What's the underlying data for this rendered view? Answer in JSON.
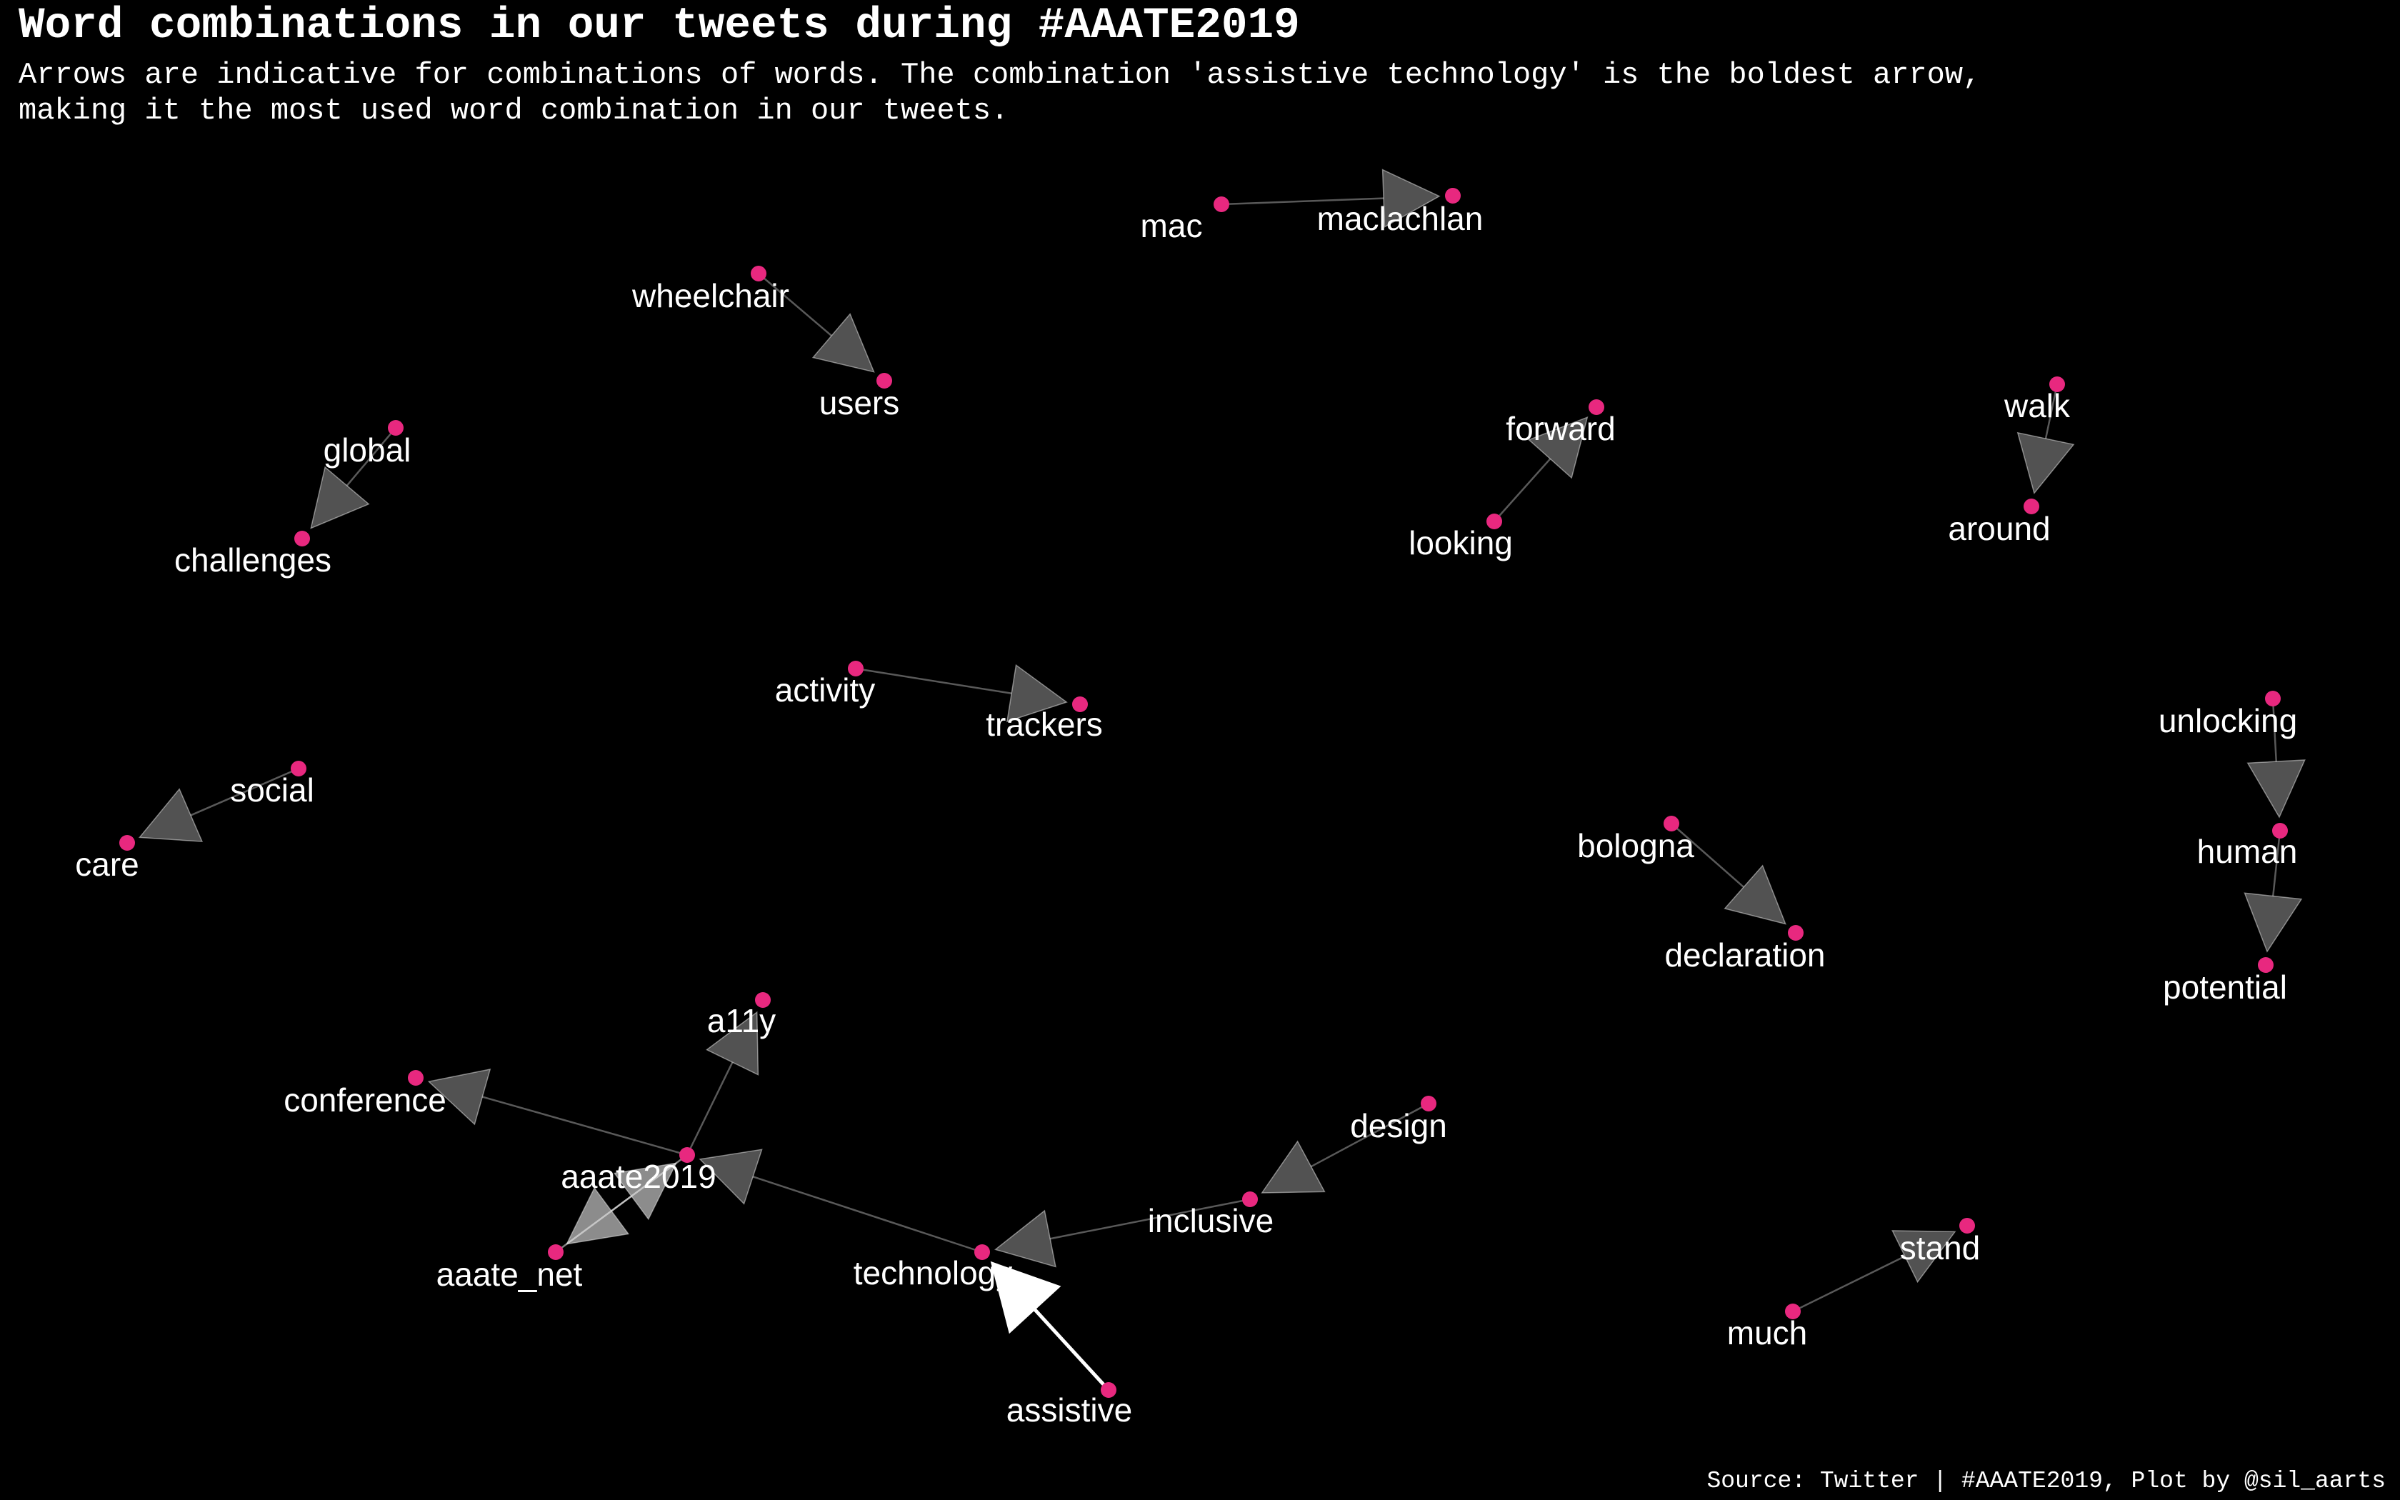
{
  "title": "Word combinations in our tweets during #AAATE2019",
  "subtitle": "Arrows are indicative for combinations of words. The combination 'assistive technology' is the boldest arrow,\nmaking it the most used word combination in our tweets.",
  "caption": "Source: Twitter | #AAATE2019, Plot by @sil_aarts",
  "colors": {
    "background": "#000000",
    "node": "#e8287f",
    "text": "#ffffff",
    "edge": "#ffffff"
  },
  "nodes": [
    {
      "id": "mac",
      "label": "mac"
    },
    {
      "id": "maclachlan",
      "label": "maclachlan"
    },
    {
      "id": "wheelchair",
      "label": "wheelchair"
    },
    {
      "id": "users",
      "label": "users"
    },
    {
      "id": "forward",
      "label": "forward"
    },
    {
      "id": "looking",
      "label": "looking"
    },
    {
      "id": "walk",
      "label": "walk"
    },
    {
      "id": "around",
      "label": "around"
    },
    {
      "id": "global",
      "label": "global"
    },
    {
      "id": "challenges",
      "label": "challenges"
    },
    {
      "id": "activity",
      "label": "activity"
    },
    {
      "id": "trackers",
      "label": "trackers"
    },
    {
      "id": "unlocking",
      "label": "unlocking"
    },
    {
      "id": "human",
      "label": "human"
    },
    {
      "id": "potential",
      "label": "potential"
    },
    {
      "id": "social",
      "label": "social"
    },
    {
      "id": "care",
      "label": "care"
    },
    {
      "id": "bologna",
      "label": "bologna"
    },
    {
      "id": "declaration",
      "label": "declaration"
    },
    {
      "id": "a11y",
      "label": "a11y"
    },
    {
      "id": "conference",
      "label": "conference"
    },
    {
      "id": "design",
      "label": "design"
    },
    {
      "id": "aaate2019",
      "label": "aaate2019"
    },
    {
      "id": "inclusive",
      "label": "inclusive"
    },
    {
      "id": "stand",
      "label": "stand"
    },
    {
      "id": "aaate_net",
      "label": "aaate_net"
    },
    {
      "id": "technology",
      "label": "technology"
    },
    {
      "id": "much",
      "label": "much"
    },
    {
      "id": "assistive",
      "label": "assistive"
    }
  ],
  "edges": [
    {
      "from": "mac",
      "to": "maclachlan",
      "weight": 1
    },
    {
      "from": "wheelchair",
      "to": "users",
      "weight": 1
    },
    {
      "from": "looking",
      "to": "forward",
      "weight": 1
    },
    {
      "from": "walk",
      "to": "around",
      "weight": 1
    },
    {
      "from": "global",
      "to": "challenges",
      "weight": 1
    },
    {
      "from": "activity",
      "to": "trackers",
      "weight": 1
    },
    {
      "from": "unlocking",
      "to": "human",
      "weight": 1
    },
    {
      "from": "human",
      "to": "potential",
      "weight": 1
    },
    {
      "from": "social",
      "to": "care",
      "weight": 1
    },
    {
      "from": "bologna",
      "to": "declaration",
      "weight": 1
    },
    {
      "from": "aaate2019",
      "to": "a11y",
      "weight": 1
    },
    {
      "from": "aaate2019",
      "to": "conference",
      "weight": 1
    },
    {
      "from": "technology",
      "to": "aaate2019",
      "weight": 1
    },
    {
      "from": "aaate_net",
      "to": "aaate2019",
      "weight": 2
    },
    {
      "from": "aaate2019",
      "to": "aaate_net",
      "weight": 2
    },
    {
      "from": "design",
      "to": "inclusive",
      "weight": 1
    },
    {
      "from": "inclusive",
      "to": "technology",
      "weight": 1
    },
    {
      "from": "much",
      "to": "stand",
      "weight": 1
    },
    {
      "from": "assistive",
      "to": "technology",
      "weight": 5
    }
  ]
}
